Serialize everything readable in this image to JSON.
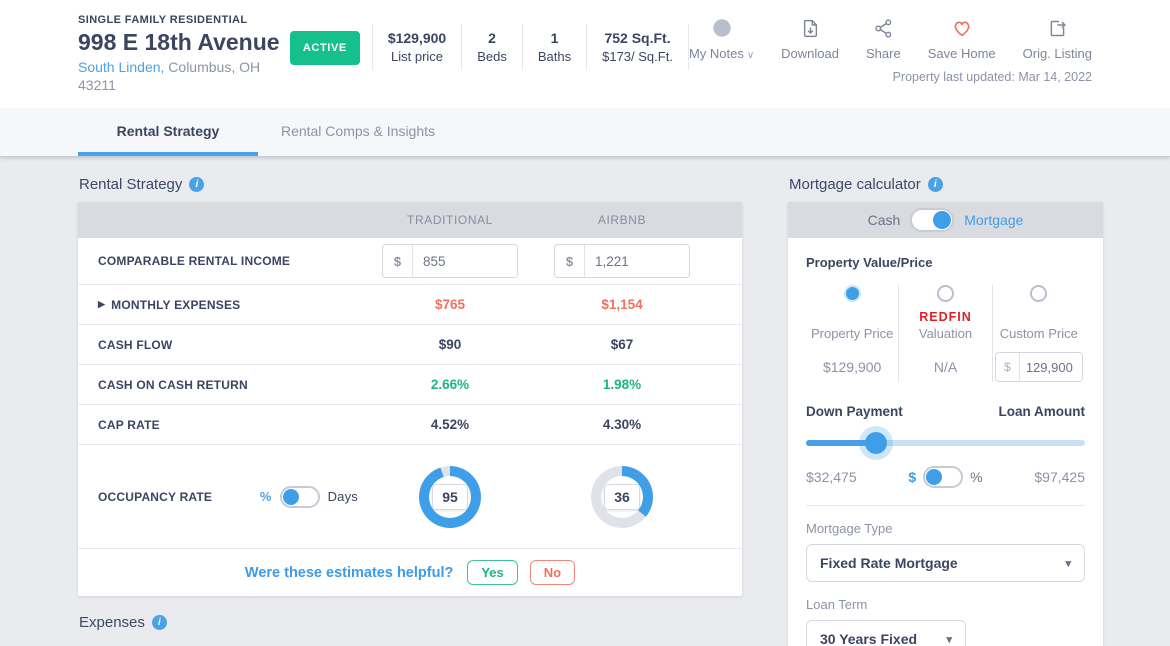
{
  "header": {
    "property_type": "SINGLE FAMILY RESIDENTIAL",
    "address": "998 E 18th Avenue",
    "neighborhood": "South Linden,",
    "city_state": " Columbus, OH",
    "zip": "43211",
    "status_label": "ACTIVE",
    "stats": [
      {
        "value": "$129,900",
        "label": "List price"
      },
      {
        "value": "2",
        "label": "Beds"
      },
      {
        "value": "1",
        "label": "Baths"
      },
      {
        "value": "752 Sq.Ft.",
        "label": "$173/ Sq.Ft."
      }
    ],
    "actions": [
      {
        "label": "My Notes"
      },
      {
        "label": "Download"
      },
      {
        "label": "Share"
      },
      {
        "label": "Save Home"
      },
      {
        "label": "Orig. Listing"
      }
    ],
    "last_updated": "Property last updated: Mar 14, 2022"
  },
  "tabs": [
    {
      "label": "Rental Strategy",
      "active": true
    },
    {
      "label": "Rental Comps & Insights",
      "active": false
    }
  ],
  "rental_strategy": {
    "title": "Rental Strategy",
    "columns": [
      "TRADITIONAL",
      "AIRBNB"
    ],
    "income": {
      "label": "COMPARABLE RENTAL INCOME",
      "currency": "$",
      "traditional": "855",
      "airbnb": "1,221"
    },
    "monthly_expenses": {
      "label": "MONTHLY EXPENSES",
      "traditional": "$765",
      "airbnb": "$1,154"
    },
    "cash_flow": {
      "label": "CASH FLOW",
      "traditional": "$90",
      "airbnb": "$67"
    },
    "cash_on_cash_return": {
      "label": "CASH ON CASH RETURN",
      "traditional": "2.66%",
      "airbnb": "1.98%"
    },
    "cap_rate": {
      "label": "CAP RATE",
      "traditional": "4.52%",
      "airbnb": "4.30%"
    },
    "occupancy": {
      "label": "OCCUPANCY RATE",
      "toggle_left": "%",
      "toggle_right": "Days",
      "traditional": 95,
      "airbnb": 36
    },
    "feedback": {
      "question": "Were these estimates helpful?",
      "yes": "Yes",
      "no": "No"
    }
  },
  "expenses": {
    "title": "Expenses"
  },
  "mortgage": {
    "title": "Mortgage calculator",
    "mode_left": "Cash",
    "mode_right": "Mortgage",
    "property_value": {
      "label": "Property Value/Price",
      "options": [
        {
          "name": "Property Price",
          "value": "$129,900",
          "selected": true
        },
        {
          "brand": "REDFIN",
          "name": "Valuation",
          "value": "N/A",
          "selected": false
        },
        {
          "name": "Custom Price",
          "currency": "$",
          "input": "129,900",
          "selected": false
        }
      ]
    },
    "down_payment_label": "Down Payment",
    "loan_amount_label": "Loan Amount",
    "down_payment_value": "$32,475",
    "loan_amount_value": "$97,425",
    "dp_toggle_left": "$",
    "dp_toggle_right": "%",
    "slider_percent": 25,
    "mortgage_type": {
      "label": "Mortgage Type",
      "value": "Fixed Rate Mortgage"
    },
    "loan_term": {
      "label": "Loan Term",
      "value": "30 Years Fixed"
    }
  },
  "colors": {
    "accent_blue": "#3f9ee8",
    "status_green": "#16bf8e",
    "value_green": "#1db584",
    "expense_coral": "#ef7160",
    "redfin_red": "#d92228",
    "text_navy": "#3c4560"
  }
}
